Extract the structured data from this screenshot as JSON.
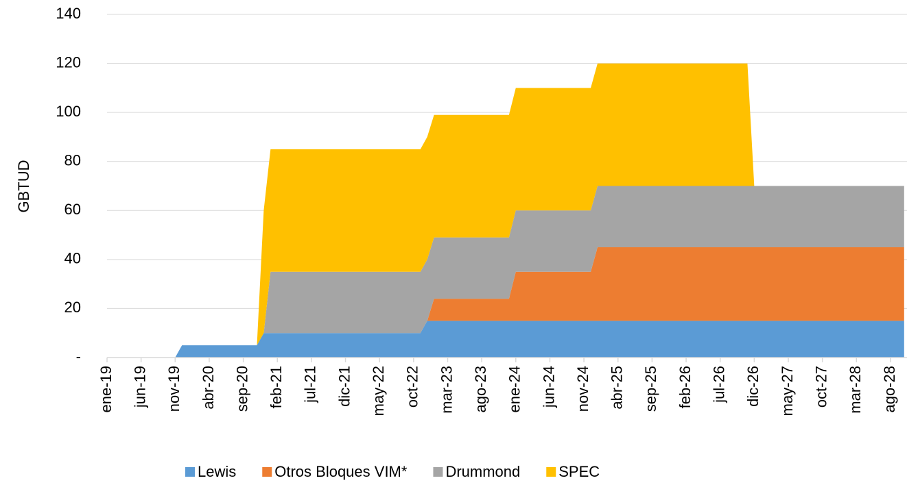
{
  "chart_data": {
    "type": "stacked_area",
    "y_label": "GBTUD",
    "categories": [
      "ene-19",
      null,
      null,
      null,
      null,
      "jun-19",
      null,
      null,
      null,
      null,
      "nov-19",
      null,
      null,
      null,
      null,
      "abr-20",
      null,
      null,
      null,
      null,
      "sep-20",
      null,
      null,
      null,
      null,
      "feb-21",
      null,
      null,
      null,
      null,
      "jul-21",
      null,
      null,
      null,
      null,
      "dic-21",
      null,
      null,
      null,
      null,
      "may-22",
      null,
      null,
      null,
      null,
      "oct-22",
      null,
      null,
      null,
      null,
      "mar-23",
      null,
      null,
      null,
      null,
      "ago-23",
      null,
      null,
      null,
      null,
      "ene-24",
      null,
      null,
      null,
      null,
      "jun-24",
      null,
      null,
      null,
      null,
      "nov-24",
      null,
      null,
      null,
      null,
      "abr-25",
      null,
      null,
      null,
      null,
      "sep-25",
      null,
      null,
      null,
      null,
      "feb-26",
      null,
      null,
      null,
      null,
      "jul-26",
      null,
      null,
      null,
      null,
      "dic-26",
      null,
      null,
      null,
      null,
      "may-27",
      null,
      null,
      null,
      null,
      "oct-27",
      null,
      null,
      null,
      null,
      "mar-28",
      null,
      null,
      null,
      null,
      "ago-28",
      null,
      null
    ],
    "series": [
      {
        "name": "Lewis",
        "color": "#5b9bd5",
        "values": [
          0,
          0,
          0,
          0,
          0,
          0,
          0,
          0,
          0,
          0,
          0,
          5,
          5,
          5,
          5,
          5,
          5,
          5,
          5,
          5,
          5,
          5,
          5,
          10,
          10,
          10,
          10,
          10,
          10,
          10,
          10,
          10,
          10,
          10,
          10,
          10,
          10,
          10,
          10,
          10,
          10,
          10,
          10,
          10,
          10,
          10,
          10,
          15,
          15,
          15,
          15,
          15,
          15,
          15,
          15,
          15,
          15,
          15,
          15,
          15,
          15,
          15,
          15,
          15,
          15,
          15,
          15,
          15,
          15,
          15,
          15,
          15,
          15,
          15,
          15,
          15,
          15,
          15,
          15,
          15,
          15,
          15,
          15,
          15,
          15,
          15,
          15,
          15,
          15,
          15,
          15,
          15,
          15,
          15,
          15,
          15,
          15,
          15,
          15,
          15,
          15,
          15,
          15,
          15,
          15,
          15,
          15,
          15,
          15,
          15,
          15,
          15,
          15,
          15,
          15,
          15,
          15,
          15
        ]
      },
      {
        "name": "Otros Bloques VIM*",
        "color": "#ed7d31",
        "values": [
          0,
          0,
          0,
          0,
          0,
          0,
          0,
          0,
          0,
          0,
          0,
          0,
          0,
          0,
          0,
          0,
          0,
          0,
          0,
          0,
          0,
          0,
          0,
          0,
          0,
          0,
          0,
          0,
          0,
          0,
          0,
          0,
          0,
          0,
          0,
          0,
          0,
          0,
          0,
          0,
          0,
          0,
          0,
          0,
          0,
          0,
          0,
          0,
          9,
          9,
          9,
          9,
          9,
          9,
          9,
          9,
          9,
          9,
          9,
          9,
          20,
          20,
          20,
          20,
          20,
          20,
          20,
          20,
          20,
          20,
          20,
          20,
          30,
          30,
          30,
          30,
          30,
          30,
          30,
          30,
          30,
          30,
          30,
          30,
          30,
          30,
          30,
          30,
          30,
          30,
          30,
          30,
          30,
          30,
          30,
          30,
          30,
          30,
          30,
          30,
          30,
          30,
          30,
          30,
          30,
          30,
          30,
          30,
          30,
          30,
          30,
          30,
          30,
          30,
          30,
          30,
          30,
          30
        ]
      },
      {
        "name": "Drummond",
        "color": "#a5a5a5",
        "values": [
          0,
          0,
          0,
          0,
          0,
          0,
          0,
          0,
          0,
          0,
          0,
          0,
          0,
          0,
          0,
          0,
          0,
          0,
          0,
          0,
          0,
          0,
          0,
          0,
          25,
          25,
          25,
          25,
          25,
          25,
          25,
          25,
          25,
          25,
          25,
          25,
          25,
          25,
          25,
          25,
          25,
          25,
          25,
          25,
          25,
          25,
          25,
          25,
          25,
          25,
          25,
          25,
          25,
          25,
          25,
          25,
          25,
          25,
          25,
          25,
          25,
          25,
          25,
          25,
          25,
          25,
          25,
          25,
          25,
          25,
          25,
          25,
          25,
          25,
          25,
          25,
          25,
          25,
          25,
          25,
          25,
          25,
          25,
          25,
          25,
          25,
          25,
          25,
          25,
          25,
          25,
          25,
          25,
          25,
          25,
          25,
          25,
          25,
          25,
          25,
          25,
          25,
          25,
          25,
          25,
          25,
          25,
          25,
          25,
          25,
          25,
          25,
          25,
          25,
          25,
          25,
          25,
          25
        ]
      },
      {
        "name": "SPEC",
        "color": "#ffc000",
        "values": [
          0,
          0,
          0,
          0,
          0,
          0,
          0,
          0,
          0,
          0,
          0,
          0,
          0,
          0,
          0,
          0,
          0,
          0,
          0,
          0,
          0,
          0,
          0,
          50,
          50,
          50,
          50,
          50,
          50,
          50,
          50,
          50,
          50,
          50,
          50,
          50,
          50,
          50,
          50,
          50,
          50,
          50,
          50,
          50,
          50,
          50,
          50,
          50,
          50,
          50,
          50,
          50,
          50,
          50,
          50,
          50,
          50,
          50,
          50,
          50,
          50,
          50,
          50,
          50,
          50,
          50,
          50,
          50,
          50,
          50,
          50,
          50,
          50,
          50,
          50,
          50,
          50,
          50,
          50,
          50,
          50,
          50,
          50,
          50,
          50,
          50,
          50,
          50,
          50,
          50,
          50,
          50,
          50,
          50,
          50,
          0,
          0,
          0,
          0,
          0,
          0,
          0,
          0,
          0,
          0,
          0,
          0,
          0,
          0,
          0,
          0,
          0,
          0,
          0,
          0,
          0,
          0,
          0
        ]
      }
    ],
    "ylim": [
      0,
      140
    ],
    "yticks": [
      {
        "value": 0,
        "label": "-"
      },
      20,
      40,
      60,
      80,
      100,
      120,
      140
    ],
    "grid": true,
    "legend": "bottom"
  }
}
